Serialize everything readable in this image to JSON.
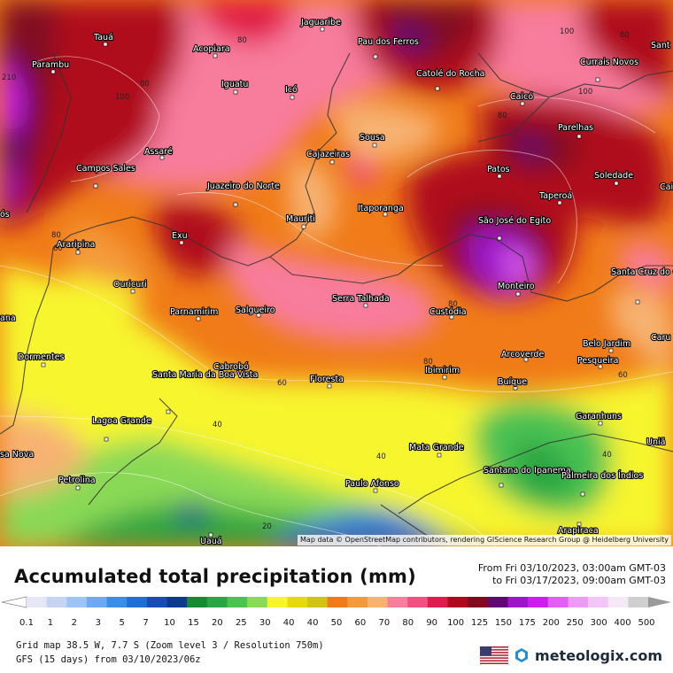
{
  "map": {
    "attribution": "Map data © OpenStreetMap contributors, rendering GIScience Research Group @ Heidelberg University",
    "places": [
      {
        "name": "Tauá"
      },
      {
        "name": "Jaguaribe"
      },
      {
        "name": "Pau dos Ferros"
      },
      {
        "name": "Acopiara"
      },
      {
        "name": "Parambu"
      },
      {
        "name": "Iguatu"
      },
      {
        "name": "Icó"
      },
      {
        "name": "Catolé do Rocha"
      },
      {
        "name": "Currais Novos"
      },
      {
        "name": "Caicó"
      },
      {
        "name": "Parelhas"
      },
      {
        "name": "Sousa"
      },
      {
        "name": "Cajazeiras"
      },
      {
        "name": "Assaré"
      },
      {
        "name": "Campos Sales"
      },
      {
        "name": "Patos"
      },
      {
        "name": "Soledade"
      },
      {
        "name": "Juazeiro do Norte"
      },
      {
        "name": "Taperoá"
      },
      {
        "name": "Itaporanga"
      },
      {
        "name": "Mauriti"
      },
      {
        "name": "São José do Egito"
      },
      {
        "name": "Exu"
      },
      {
        "name": "Araripina"
      },
      {
        "name": "Monteiro"
      },
      {
        "name": "Santa Cruz do Capibaribe"
      },
      {
        "name": "Ouricuri"
      },
      {
        "name": "Serra Talhada"
      },
      {
        "name": "Parnamirim"
      },
      {
        "name": "Salgueiro"
      },
      {
        "name": "Custódia"
      },
      {
        "name": "Belo Jardim"
      },
      {
        "name": "Arcoverde"
      },
      {
        "name": "Pesqueira"
      },
      {
        "name": "Dormentes"
      },
      {
        "name": "Cabrobó"
      },
      {
        "name": "Floresta"
      },
      {
        "name": "Ibimirim"
      },
      {
        "name": "Santa Maria da Boa Vista"
      },
      {
        "name": "Buíque"
      },
      {
        "name": "Garanhuns"
      },
      {
        "name": "Lagoa Grande"
      },
      {
        "name": "Mata Grande"
      },
      {
        "name": "Santana do Ipanema"
      },
      {
        "name": "Palmeira dos Índios"
      },
      {
        "name": "Petrolina"
      },
      {
        "name": "Paulo Afonso"
      },
      {
        "name": "Arapiraca"
      },
      {
        "name": "Uauá"
      }
    ],
    "edge_labels": [
      "Sant",
      "Cai",
      "Caru",
      "Uniã",
      "ana",
      "sa Nova",
      "ós"
    ],
    "isolines": [
      "80",
      "100",
      "80",
      "100",
      "80",
      "60",
      "40",
      "40",
      "20",
      "80",
      "80",
      "60",
      "40",
      "60",
      "80",
      "100",
      "80",
      "210"
    ]
  },
  "title": "Accumulated total precipitation (mm)",
  "period": {
    "from": "From Fri 03/10/2023, 03:00am GMT-03",
    "to": "to Fri 03/17/2023, 09:00am GMT-03"
  },
  "scale": {
    "colors": [
      "#e6e6f7",
      "#c4d4f2",
      "#9ec3f7",
      "#6fa8f0",
      "#3b8ee8",
      "#1f6fd6",
      "#1a4cb8",
      "#0e3a8e",
      "#178a33",
      "#2aa543",
      "#4cc252",
      "#8ad957",
      "#f7f52e",
      "#e6d90f",
      "#d1c316",
      "#f07b18",
      "#f49a3a",
      "#f7b272",
      "#f87c9c",
      "#f25082",
      "#e11a4c",
      "#b0081e",
      "#820a20",
      "#5e0a72",
      "#9d16c9",
      "#ce1df0",
      "#e25ff4",
      "#eb9bf5",
      "#f2c6f7",
      "#f4e8f6",
      "#cfcfcf"
    ],
    "labels": [
      "0.1",
      "1",
      "2",
      "3",
      "5",
      "7",
      "10",
      "15",
      "20",
      "25",
      "30",
      "40",
      "40",
      "50",
      "60",
      "70",
      "80",
      "90",
      "100",
      "125",
      "150",
      "175",
      "200",
      "250",
      "300",
      "400",
      "500"
    ]
  },
  "grid": "Grid map 38.5 W, 7.7 S (Zoom level 3 / Resolution 750m)",
  "model": "GFS (15 days) from 03/10/2023/06z",
  "brand": "meteologix.com"
}
